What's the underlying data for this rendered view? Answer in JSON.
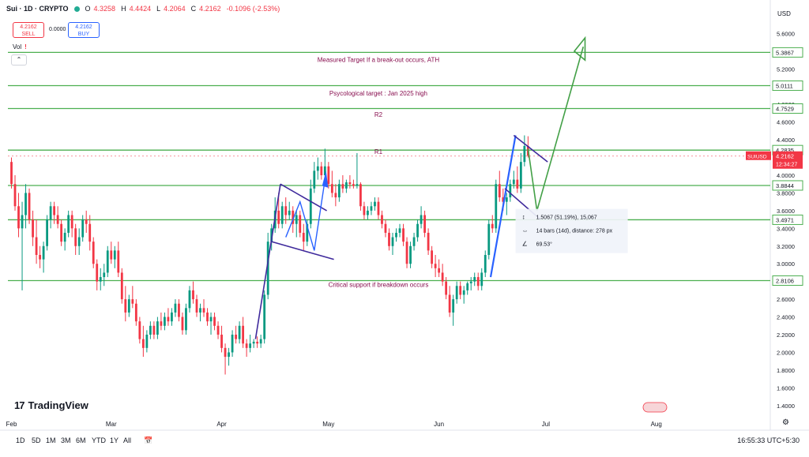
{
  "header": {
    "symbol": "Sui · 1D · CRYPTO",
    "open_label": "O",
    "open": "4.3258",
    "high_label": "H",
    "high": "4.4424",
    "low_label": "L",
    "low": "4.2064",
    "close_label": "C",
    "close": "4.2162",
    "change": "-0.1096 (-2.53%)"
  },
  "trade": {
    "sell_price": "4.2162",
    "sell_label": "SELL",
    "spread": "0.0000",
    "buy_price": "4.2162",
    "buy_label": "BUY"
  },
  "volume_label": "Vol",
  "volume_warning": "!",
  "collapse_icon": "chevron-up",
  "currency": "USD",
  "logo_text": "TradingView",
  "timeframes": [
    "1D",
    "5D",
    "1M",
    "3M",
    "6M",
    "YTD",
    "1Y",
    "All"
  ],
  "clock": "16:55:33 UTC+5:30",
  "colors": {
    "up": "#089981",
    "down": "#f23645",
    "level_line": "#4caf50",
    "annotation_text": "#880e4f",
    "trendline": "#3f2a9c",
    "blue_path": "#2962ff",
    "green_path": "#43a047"
  },
  "chart_data": {
    "type": "candlestick",
    "symbol": "SUIUSD",
    "timeframe": "1D",
    "ylim": [
      1.3,
      5.8
    ],
    "y_ticks": [
      "5.6000",
      "5.4000",
      "5.2000",
      "5.0000",
      "4.8000",
      "4.6000",
      "4.4000",
      "4.2000",
      "4.0000",
      "3.8000",
      "3.6000",
      "3.4000",
      "3.2000",
      "3.0000",
      "2.8000",
      "2.6000",
      "2.4000",
      "2.2000",
      "2.0000",
      "1.8000",
      "1.6000",
      "1.4000"
    ],
    "x_ticks": [
      {
        "label": "Feb",
        "day": 0
      },
      {
        "label": "Mar",
        "day": 28
      },
      {
        "label": "Apr",
        "day": 59
      },
      {
        "label": "May",
        "day": 89
      },
      {
        "label": "Jun",
        "day": 120
      },
      {
        "label": "Jul",
        "day": 150
      },
      {
        "label": "Aug",
        "day": 181
      }
    ],
    "xlim_days": [
      -1,
      213
    ],
    "horizontal_levels": [
      {
        "price": 5.3867,
        "label": "5.3867"
      },
      {
        "price": 5.0111,
        "label": "5.0111"
      },
      {
        "price": 4.7529,
        "label": "4.7529"
      },
      {
        "price": 4.2835,
        "label": "4.2835"
      },
      {
        "price": 3.8844,
        "label": "3.8844"
      },
      {
        "price": 3.4971,
        "label": "3.4971"
      },
      {
        "price": 2.8106,
        "label": "2.8106"
      }
    ],
    "level_annotations": [
      {
        "text": "Measured Target If a break-out occurs, ATH",
        "price": 5.28,
        "day": 103
      },
      {
        "text": "Psycological target : Jan 2025 high",
        "price": 4.9,
        "day": 103
      },
      {
        "text": "R2",
        "price": 4.66,
        "day": 103
      },
      {
        "text": "R1",
        "price": 4.24,
        "day": 103
      },
      {
        "text": "Critical support if breakdown occurs",
        "price": 2.74,
        "day": 103
      }
    ],
    "last_price": {
      "symbol_label": "SUIUSD",
      "price": "4.2162",
      "countdown": "12:34:27",
      "value": 4.2162
    },
    "measure_tooltip": {
      "line1": "1.5067 (51.19%), 15,067",
      "line2": "14 bars (14d), distance: 278 px",
      "line3": "69.53°"
    },
    "candles": [
      [
        0,
        4.15,
        4.2,
        3.85,
        3.9
      ],
      [
        1,
        3.9,
        4.0,
        3.6,
        3.65
      ],
      [
        2,
        3.65,
        3.8,
        3.3,
        3.4
      ],
      [
        3,
        3.4,
        3.7,
        2.7,
        3.55
      ],
      [
        4,
        3.55,
        3.9,
        3.4,
        3.8
      ],
      [
        5,
        3.8,
        3.85,
        3.45,
        3.5
      ],
      [
        6,
        3.5,
        3.6,
        3.2,
        3.3
      ],
      [
        7,
        3.3,
        3.5,
        3.0,
        3.1
      ],
      [
        8,
        3.1,
        3.2,
        2.95,
        3.05
      ],
      [
        9,
        3.05,
        3.25,
        2.9,
        3.2
      ],
      [
        10,
        3.2,
        3.55,
        3.15,
        3.5
      ],
      [
        11,
        3.5,
        3.7,
        3.4,
        3.65
      ],
      [
        12,
        3.65,
        3.7,
        3.45,
        3.55
      ],
      [
        13,
        3.55,
        3.65,
        3.4,
        3.45
      ],
      [
        14,
        3.45,
        3.5,
        3.2,
        3.25
      ],
      [
        15,
        3.25,
        3.4,
        3.15,
        3.35
      ],
      [
        16,
        3.35,
        3.6,
        3.3,
        3.55
      ],
      [
        17,
        3.55,
        3.6,
        3.3,
        3.4
      ],
      [
        18,
        3.4,
        3.45,
        3.1,
        3.2
      ],
      [
        19,
        3.2,
        3.4,
        3.1,
        3.3
      ],
      [
        20,
        3.3,
        3.55,
        3.25,
        3.5
      ],
      [
        21,
        3.5,
        3.6,
        3.35,
        3.45
      ],
      [
        22,
        3.45,
        3.55,
        3.15,
        3.25
      ],
      [
        23,
        3.25,
        3.3,
        2.95,
        3.0
      ],
      [
        24,
        3.0,
        3.05,
        2.7,
        2.8
      ],
      [
        25,
        2.8,
        2.95,
        2.7,
        2.85
      ],
      [
        26,
        2.85,
        3.0,
        2.75,
        2.9
      ],
      [
        27,
        2.9,
        3.2,
        2.85,
        3.15
      ],
      [
        28,
        3.15,
        3.25,
        3.0,
        3.05
      ],
      [
        29,
        3.05,
        3.2,
        2.95,
        3.15
      ],
      [
        30,
        3.15,
        3.25,
        2.85,
        2.9
      ],
      [
        31,
        2.9,
        2.95,
        2.55,
        2.6
      ],
      [
        32,
        2.6,
        2.75,
        2.35,
        2.45
      ],
      [
        33,
        2.45,
        2.65,
        2.4,
        2.6
      ],
      [
        34,
        2.6,
        2.75,
        2.5,
        2.55
      ],
      [
        35,
        2.55,
        2.6,
        2.3,
        2.35
      ],
      [
        36,
        2.35,
        2.4,
        2.1,
        2.15
      ],
      [
        37,
        2.15,
        2.3,
        1.95,
        2.05
      ],
      [
        38,
        2.05,
        2.25,
        2.0,
        2.2
      ],
      [
        39,
        2.2,
        2.35,
        2.15,
        2.3
      ],
      [
        40,
        2.3,
        2.35,
        2.15,
        2.2
      ],
      [
        41,
        2.2,
        2.4,
        2.15,
        2.35
      ],
      [
        42,
        2.35,
        2.45,
        2.25,
        2.3
      ],
      [
        43,
        2.3,
        2.45,
        2.25,
        2.4
      ],
      [
        44,
        2.4,
        2.5,
        2.3,
        2.35
      ],
      [
        45,
        2.35,
        2.5,
        2.3,
        2.45
      ],
      [
        46,
        2.45,
        2.6,
        2.4,
        2.55
      ],
      [
        47,
        2.55,
        2.6,
        2.35,
        2.4
      ],
      [
        48,
        2.4,
        2.45,
        2.2,
        2.25
      ],
      [
        49,
        2.25,
        2.55,
        2.2,
        2.5
      ],
      [
        50,
        2.5,
        2.75,
        2.45,
        2.7
      ],
      [
        51,
        2.7,
        2.8,
        2.55,
        2.6
      ],
      [
        52,
        2.6,
        2.65,
        2.4,
        2.45
      ],
      [
        53,
        2.45,
        2.55,
        2.35,
        2.5
      ],
      [
        54,
        2.5,
        2.6,
        2.4,
        2.45
      ],
      [
        55,
        2.45,
        2.5,
        2.3,
        2.35
      ],
      [
        56,
        2.35,
        2.45,
        2.2,
        2.4
      ],
      [
        57,
        2.4,
        2.45,
        2.25,
        2.3
      ],
      [
        58,
        2.3,
        2.35,
        2.15,
        2.2
      ],
      [
        59,
        2.2,
        2.3,
        2.0,
        2.05
      ],
      [
        60,
        2.05,
        2.1,
        1.75,
        1.95
      ],
      [
        61,
        1.95,
        2.05,
        1.85,
        2.0
      ],
      [
        62,
        2.0,
        2.25,
        1.95,
        2.2
      ],
      [
        63,
        2.2,
        2.3,
        2.1,
        2.15
      ],
      [
        64,
        2.15,
        2.35,
        2.1,
        2.3
      ],
      [
        65,
        2.3,
        2.4,
        2.05,
        2.1
      ],
      [
        66,
        2.1,
        2.15,
        1.95,
        2.05
      ],
      [
        67,
        2.05,
        2.2,
        2.0,
        2.1
      ],
      [
        68,
        2.1,
        2.15,
        2.05,
        2.12
      ],
      [
        69,
        2.12,
        2.18,
        2.05,
        2.1
      ],
      [
        70,
        2.1,
        2.2,
        2.05,
        2.15
      ],
      [
        71,
        2.15,
        2.7,
        2.1,
        2.65
      ],
      [
        72,
        2.65,
        3.35,
        2.6,
        3.25
      ],
      [
        73,
        3.25,
        3.45,
        3.15,
        3.4
      ],
      [
        74,
        3.4,
        3.75,
        3.35,
        3.6
      ],
      [
        75,
        3.6,
        3.8,
        3.4,
        3.45
      ],
      [
        76,
        3.45,
        3.7,
        3.4,
        3.65
      ],
      [
        77,
        3.65,
        3.75,
        3.45,
        3.55
      ],
      [
        78,
        3.55,
        3.7,
        3.5,
        3.6
      ],
      [
        79,
        3.6,
        3.65,
        3.35,
        3.45
      ],
      [
        80,
        3.45,
        3.6,
        3.3,
        3.55
      ],
      [
        81,
        3.55,
        3.6,
        3.3,
        3.35
      ],
      [
        82,
        3.35,
        3.45,
        3.15,
        3.25
      ],
      [
        83,
        3.25,
        3.5,
        3.2,
        3.45
      ],
      [
        84,
        3.45,
        3.95,
        3.4,
        3.85
      ],
      [
        85,
        3.85,
        4.15,
        3.8,
        4.05
      ],
      [
        86,
        4.05,
        4.2,
        3.95,
        4.1
      ],
      [
        87,
        4.1,
        4.15,
        3.95,
        4.0
      ],
      [
        88,
        4.0,
        4.3,
        3.95,
        4.1
      ],
      [
        89,
        4.1,
        4.15,
        3.85,
        3.9
      ],
      [
        90,
        3.9,
        4.05,
        3.75,
        3.8
      ],
      [
        91,
        3.8,
        3.9,
        3.65,
        3.75
      ],
      [
        92,
        3.75,
        3.95,
        3.7,
        3.9
      ],
      [
        93,
        3.9,
        4.0,
        3.8,
        3.85
      ],
      [
        94,
        3.85,
        3.95,
        3.8,
        3.92
      ],
      [
        95,
        3.92,
        4.0,
        3.85,
        3.9
      ],
      [
        96,
        3.9,
        3.95,
        3.85,
        3.88
      ],
      [
        97,
        3.88,
        4.25,
        3.85,
        3.9
      ],
      [
        98,
        3.9,
        3.92,
        3.6,
        3.65
      ],
      [
        99,
        3.65,
        3.7,
        3.5,
        3.55
      ],
      [
        100,
        3.55,
        3.65,
        3.5,
        3.6
      ],
      [
        101,
        3.6,
        3.7,
        3.55,
        3.65
      ],
      [
        102,
        3.65,
        3.75,
        3.6,
        3.7
      ],
      [
        103,
        3.7,
        3.75,
        3.5,
        3.55
      ],
      [
        104,
        3.55,
        3.6,
        3.4,
        3.45
      ],
      [
        105,
        3.45,
        3.5,
        3.3,
        3.35
      ],
      [
        106,
        3.35,
        3.4,
        3.15,
        3.2
      ],
      [
        107,
        3.2,
        3.35,
        3.1,
        3.3
      ],
      [
        108,
        3.3,
        3.4,
        3.25,
        3.35
      ],
      [
        109,
        3.35,
        3.45,
        3.3,
        3.4
      ],
      [
        110,
        3.4,
        3.45,
        3.2,
        3.25
      ],
      [
        111,
        3.25,
        3.3,
        2.95,
        3.0
      ],
      [
        112,
        3.0,
        3.25,
        2.95,
        3.2
      ],
      [
        113,
        3.2,
        3.35,
        3.15,
        3.3
      ],
      [
        114,
        3.3,
        3.5,
        3.25,
        3.45
      ],
      [
        115,
        3.45,
        3.65,
        3.4,
        3.55
      ],
      [
        116,
        3.55,
        3.6,
        3.3,
        3.35
      ],
      [
        117,
        3.35,
        3.4,
        3.1,
        3.15
      ],
      [
        118,
        3.15,
        3.2,
        2.95,
        3.0
      ],
      [
        119,
        3.0,
        3.1,
        2.85,
        2.95
      ],
      [
        120,
        2.95,
        3.05,
        2.85,
        2.9
      ],
      [
        121,
        2.9,
        3.0,
        2.75,
        2.8
      ],
      [
        122,
        2.8,
        2.85,
        2.6,
        2.65
      ],
      [
        123,
        2.65,
        2.75,
        2.4,
        2.45
      ],
      [
        124,
        2.45,
        2.65,
        2.3,
        2.6
      ],
      [
        125,
        2.6,
        2.8,
        2.55,
        2.75
      ],
      [
        126,
        2.75,
        2.8,
        2.6,
        2.65
      ],
      [
        127,
        2.65,
        2.75,
        2.55,
        2.7
      ],
      [
        128,
        2.7,
        2.8,
        2.65,
        2.78
      ],
      [
        129,
        2.78,
        2.85,
        2.7,
        2.8
      ],
      [
        130,
        2.8,
        2.9,
        2.75,
        2.85
      ],
      [
        131,
        2.85,
        2.9,
        2.7,
        2.75
      ],
      [
        132,
        2.75,
        2.95,
        2.7,
        2.9
      ],
      [
        133,
        2.9,
        3.15,
        2.85,
        3.1
      ],
      [
        134,
        3.1,
        3.5,
        3.05,
        3.45
      ],
      [
        135,
        3.45,
        3.55,
        3.35,
        3.4
      ],
      [
        136,
        3.4,
        3.95,
        3.35,
        3.9
      ],
      [
        137,
        3.9,
        4.05,
        3.7,
        3.75
      ],
      [
        138,
        3.75,
        3.85,
        3.6,
        3.7
      ],
      [
        139,
        3.7,
        3.8,
        3.55,
        3.75
      ],
      [
        140,
        3.75,
        3.95,
        3.7,
        3.9
      ],
      [
        141,
        3.9,
        4.05,
        3.85,
        3.95
      ],
      [
        142,
        3.95,
        4.1,
        3.8,
        3.85
      ],
      [
        143,
        3.85,
        4.25,
        3.8,
        4.15
      ],
      [
        144,
        4.15,
        4.45,
        4.1,
        4.33
      ],
      [
        145,
        4.33,
        4.44,
        4.2,
        4.22
      ]
    ]
  }
}
